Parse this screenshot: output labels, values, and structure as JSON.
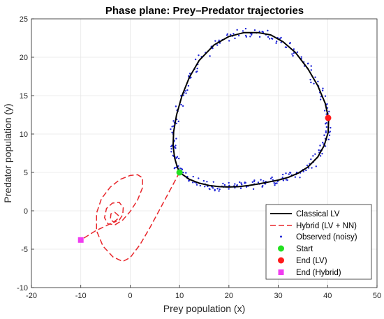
{
  "chart_data": {
    "type": "line",
    "title": "Phase plane: Prey–Predator trajectories",
    "xlabel": "Prey population (x)",
    "ylabel": "Predator population (y)",
    "xlim": [
      -20,
      50
    ],
    "ylim": [
      -10,
      25
    ],
    "xticks": [
      -20,
      -10,
      0,
      10,
      20,
      30,
      40,
      50
    ],
    "yticks": [
      -10,
      -5,
      0,
      5,
      10,
      15,
      20,
      25
    ],
    "grid": true,
    "legend_position": "bottom-right",
    "colors": {
      "classical": "#000000",
      "hybrid": "#e8262b",
      "observed": "#1f25d6",
      "start": "#22e020",
      "end_lv": "#ff1a1a",
      "end_hybrid": "#f03cf0"
    },
    "series": [
      {
        "name": "Classical LV",
        "style": "solid",
        "color": "#000000",
        "points": [
          [
            10,
            5.0
          ],
          [
            12,
            4.1
          ],
          [
            14,
            3.6
          ],
          [
            16,
            3.3
          ],
          [
            18,
            3.15
          ],
          [
            20,
            3.1
          ],
          [
            22,
            3.15
          ],
          [
            24,
            3.3
          ],
          [
            26,
            3.5
          ],
          [
            28,
            3.75
          ],
          [
            30,
            4.0
          ],
          [
            32,
            4.35
          ],
          [
            34,
            4.9
          ],
          [
            36,
            5.7
          ],
          [
            38,
            7.0
          ],
          [
            39.3,
            8.5
          ],
          [
            40.1,
            10.2
          ],
          [
            40.2,
            12.0
          ],
          [
            39.5,
            14.0
          ],
          [
            38,
            16.3
          ],
          [
            36,
            18.5
          ],
          [
            33.5,
            20.6
          ],
          [
            31,
            22.0
          ],
          [
            28.5,
            22.9
          ],
          [
            26,
            23.2
          ],
          [
            23,
            23.2
          ],
          [
            20,
            22.7
          ],
          [
            17,
            21.6
          ],
          [
            14,
            19.6
          ],
          [
            12,
            17.4
          ],
          [
            10.5,
            15.0
          ],
          [
            9.4,
            12.5
          ],
          [
            8.8,
            10.3
          ],
          [
            8.7,
            8.5
          ],
          [
            9.0,
            6.9
          ],
          [
            9.5,
            5.8
          ],
          [
            10,
            5.0
          ]
        ]
      },
      {
        "name": "Hybrid (LV + NN)",
        "style": "dashed",
        "color": "#e8262b",
        "points": [
          [
            10,
            5.0
          ],
          [
            8,
            2.6
          ],
          [
            6,
            0.2
          ],
          [
            4,
            -2.2
          ],
          [
            2,
            -4.4
          ],
          [
            0,
            -6.1
          ],
          [
            -1.5,
            -6.6
          ],
          [
            -3.5,
            -6.0
          ],
          [
            -5.5,
            -4.6
          ],
          [
            -6.8,
            -2.6
          ],
          [
            -6.8,
            -0.3
          ],
          [
            -5.8,
            1.6
          ],
          [
            -4,
            3.1
          ],
          [
            -2,
            4.1
          ],
          [
            0,
            4.6
          ],
          [
            1.5,
            4.7
          ],
          [
            2.5,
            4.3
          ],
          [
            2.5,
            3.0
          ],
          [
            1.5,
            1.4
          ],
          [
            0,
            -0.1
          ],
          [
            -1.5,
            -1.2
          ],
          [
            -3,
            -1.8
          ],
          [
            -4.5,
            -1.7
          ],
          [
            -5.2,
            -0.9
          ],
          [
            -4.8,
            0.3
          ],
          [
            -3.6,
            1.0
          ],
          [
            -2.2,
            1.1
          ],
          [
            -1.4,
            0.4
          ],
          [
            -1.5,
            -0.5
          ],
          [
            -2.2,
            -1.2
          ],
          [
            -3.3,
            -1.5
          ],
          [
            -4.0,
            -1.1
          ],
          [
            -3.9,
            -0.4
          ],
          [
            -3.1,
            -0.2
          ],
          [
            -2.4,
            -0.6
          ],
          [
            -2.6,
            -1.1
          ],
          [
            -3.2,
            -1.4
          ],
          [
            -3.8,
            -1.6
          ],
          [
            -5,
            -2.0
          ],
          [
            -7,
            -2.6
          ],
          [
            -10,
            -3.8
          ]
        ]
      },
      {
        "name": "Observed (noisy)",
        "style": "markers",
        "color": "#1f25d6"
      },
      {
        "name": "Start",
        "style": "circle-marker",
        "color": "#22e020",
        "points": [
          [
            10,
            5.0
          ]
        ]
      },
      {
        "name": "End (LV)",
        "style": "circle-marker",
        "color": "#ff1a1a",
        "points": [
          [
            40.1,
            12.1
          ]
        ]
      },
      {
        "name": "End (Hybrid)",
        "style": "square-marker",
        "color": "#f03cf0",
        "points": [
          [
            -10,
            -3.8
          ]
        ]
      }
    ]
  }
}
